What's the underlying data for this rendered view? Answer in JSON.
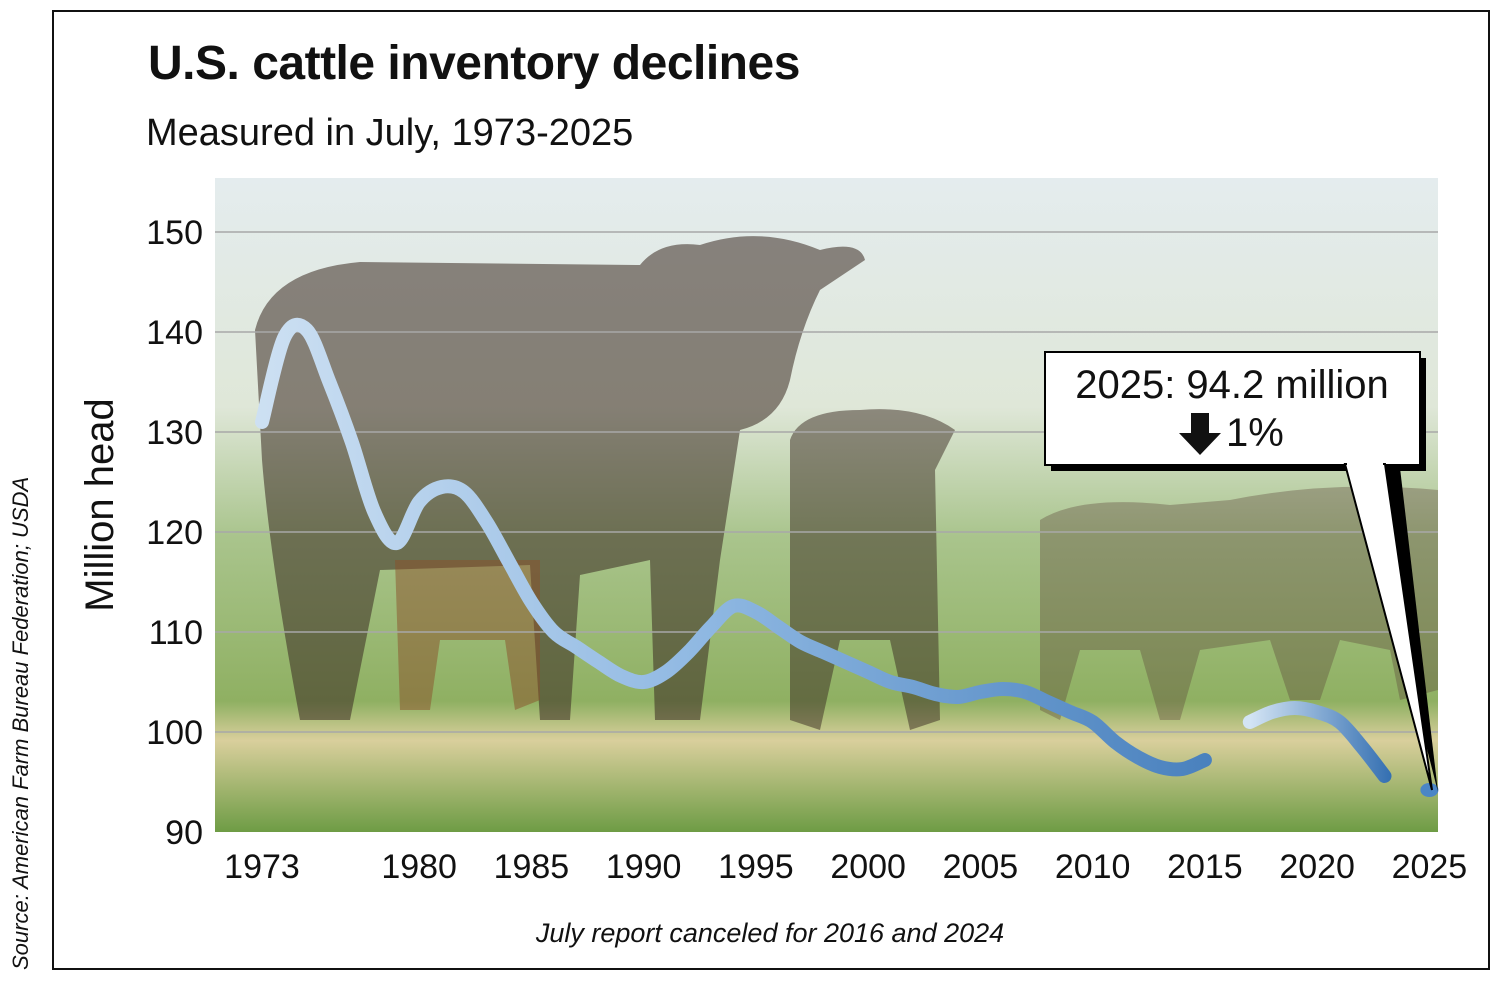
{
  "chart_data": {
    "type": "line",
    "title": "U.S. cattle inventory declines",
    "subtitle": "Measured in July, 1973-2025",
    "ylabel": "Million head",
    "xlabel": "",
    "ylim": [
      90,
      150
    ],
    "yticks": [
      90,
      100,
      110,
      120,
      130,
      140,
      150
    ],
    "xticks": [
      1973,
      1980,
      1985,
      1990,
      1995,
      2000,
      2005,
      2010,
      2015,
      2020,
      2025
    ],
    "grid": true,
    "series": [
      {
        "x": [
          1973,
          1974,
          1975,
          1976,
          1977,
          1978,
          1979,
          1980,
          1981,
          1982,
          1983,
          1984,
          1985,
          1986,
          1987,
          1988,
          1989,
          1990,
          1991,
          1992,
          1993,
          1994,
          1995,
          1996,
          1997,
          1998,
          1999,
          2000,
          2001,
          2002,
          2003,
          2004,
          2005,
          2006,
          2007,
          2008,
          2009,
          2010,
          2011,
          2012,
          2013,
          2014,
          2015,
          2017,
          2018,
          2019,
          2020,
          2021,
          2022,
          2023,
          2025
        ],
        "y": [
          131,
          139.5,
          140.2,
          135,
          129,
          122,
          118.9,
          123,
          124.5,
          124,
          121,
          117,
          113,
          110,
          108.5,
          107,
          105.6,
          105,
          106,
          108,
          110.5,
          112.6,
          112,
          110.5,
          109,
          108,
          107,
          106,
          105,
          104.5,
          103.8,
          103.5,
          104,
          104.3,
          104,
          103,
          102,
          101,
          99,
          97.5,
          96.5,
          96.3,
          97.2,
          101,
          102,
          102.4,
          102,
          101,
          98.5,
          95.6,
          94.2
        ]
      }
    ],
    "missing_years": [
      2016,
      2024
    ],
    "annotation": {
      "value_text": "2025: 94.2 million",
      "change_text": "1%",
      "change_icon": "down-arrow-icon"
    },
    "footnote": "July report canceled for 2016 and 2024",
    "source": "Source: American Farm Bureau Federation; USDA",
    "colors": {
      "line_start": "#d3e4f4",
      "line_end": "#2a68ad",
      "grid": "#a8a8a8",
      "sky": "#e3ecef",
      "grass": "#7da452"
    }
  }
}
